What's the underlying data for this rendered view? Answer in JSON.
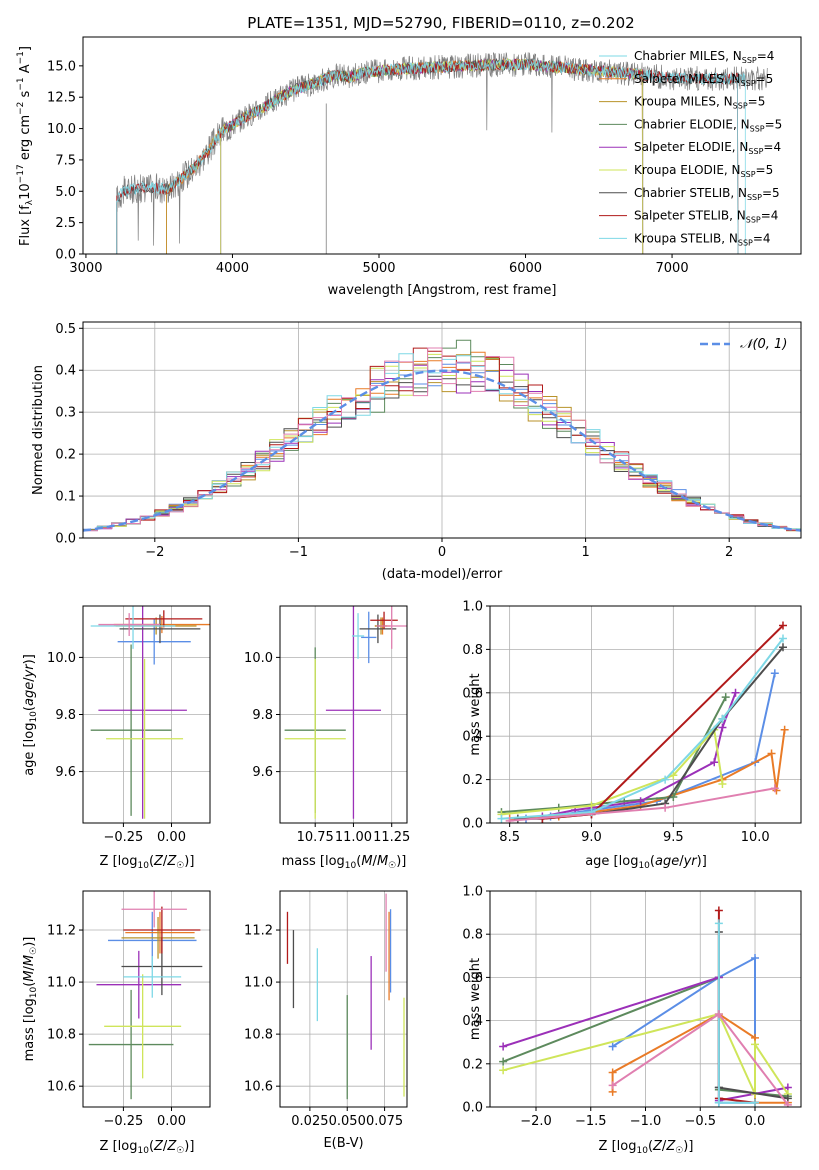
{
  "figure": {
    "title": "PLATE=1351, MJD=52790, FIBERID=0110, z=0.202",
    "colors": [
      "#5b8ee6",
      "#e97b27",
      "#b8922a",
      "#5d8a5d",
      "#9b30b8",
      "#cfe55a",
      "#4d4d4d",
      "#b11a1a",
      "#7ed8e6",
      "#e07fb0"
    ],
    "spectrum_color": "#808080"
  },
  "chart_data": [
    {
      "id": "spectrum",
      "type": "line",
      "xlabel": "wavelength [Angstrom, rest frame]",
      "ylabel": "Flux [f",
      "ylabel_full": "Flux [fλ10⁻¹⁷ erg cm⁻² s⁻¹ A⁻¹]",
      "xlim": [
        2980,
        7880
      ],
      "ylim": [
        0,
        17.3
      ],
      "xticks": [
        "3000",
        "4000",
        "5000",
        "6000",
        "7000"
      ],
      "xtick_values": [
        3000,
        4000,
        5000,
        6000,
        7000
      ],
      "yticks": [
        "0.0",
        "2.5",
        "5.0",
        "7.5",
        "10.0",
        "12.5",
        "15.0"
      ],
      "ytick_values": [
        0,
        2.5,
        5,
        7.5,
        10,
        12.5,
        15
      ],
      "grid": false,
      "legend_position": "top-right",
      "legend": [
        {
          "name": "Chabrier MILES, N",
          "sub": "SSP",
          "rest": "=4",
          "color": "#7ed8e6"
        },
        {
          "name": "Salpeter MILES, N",
          "sub": "SSP",
          "rest": "=5",
          "color": "#e97b27"
        },
        {
          "name": "Kroupa MILES, N",
          "sub": "SSP",
          "rest": "=5",
          "color": "#b8922a"
        },
        {
          "name": "Chabrier ELODIE, N",
          "sub": "SSP",
          "rest": "=5",
          "color": "#5d8a5d"
        },
        {
          "name": "Salpeter ELODIE, N",
          "sub": "SSP",
          "rest": "=4",
          "color": "#9b30b8"
        },
        {
          "name": "Kroupa ELODIE, N",
          "sub": "SSP",
          "rest": "=5",
          "color": "#cfe55a"
        },
        {
          "name": "Chabrier STELIB, N",
          "sub": "SSP",
          "rest": "=5",
          "color": "#4d4d4d"
        },
        {
          "name": "Salpeter STELIB, N",
          "sub": "SSP",
          "rest": "=4",
          "color": "#b11a1a"
        },
        {
          "name": "Kroupa STELIB, N",
          "sub": "SSP",
          "rest": "=4",
          "color": "#7ed8e6"
        }
      ],
      "model_anchor_x": [
        3200,
        3250,
        3400,
        3560,
        3650,
        3750,
        3850,
        3930,
        4000,
        4100,
        4200,
        4300,
        4400,
        4500,
        4600,
        4700,
        4800,
        4900,
        5000,
        5200,
        5400,
        5600,
        5800,
        6000,
        6200,
        6400,
        6600,
        6800,
        7000,
        7200,
        7400,
        7600
      ],
      "model_anchor_y": [
        4.2,
        5.0,
        5.3,
        5.2,
        6.0,
        7.0,
        8.5,
        9.8,
        10.3,
        11.0,
        11.6,
        12.3,
        13.0,
        13.4,
        13.8,
        14.3,
        14.1,
        14.5,
        14.6,
        14.8,
        14.9,
        15.0,
        15.1,
        15.1,
        14.9,
        14.7,
        14.5,
        14.3,
        14.0,
        14.0,
        14.0,
        14.0
      ],
      "data_range": [
        3210,
        7650
      ],
      "model_ranges": [
        [
          3210,
          7500
        ],
        [
          3550,
          6800
        ],
        [
          3550,
          6800
        ],
        [
          3920,
          6800
        ],
        [
          3920,
          6800
        ],
        [
          3920,
          6800
        ],
        [
          3210,
          7450
        ],
        [
          3210,
          7450
        ],
        [
          3210,
          7450
        ]
      ],
      "noise_amplitude": 1.1
    },
    {
      "id": "residuals",
      "type": "histogram",
      "xlabel": "(data-model)/error",
      "ylabel": "Normed distribution",
      "xlim": [
        -2.5,
        2.5
      ],
      "ylim": [
        0,
        0.515
      ],
      "xticks": [
        "−2",
        "−1",
        "0",
        "1",
        "2"
      ],
      "xtick_values": [
        -2,
        -1,
        0,
        1,
        2
      ],
      "yticks": [
        "0.0",
        "0.1",
        "0.2",
        "0.3",
        "0.4",
        "0.5"
      ],
      "ytick_values": [
        0,
        0.1,
        0.2,
        0.3,
        0.4,
        0.5
      ],
      "grid": true,
      "bin_width": 0.1,
      "n_histograms": 10,
      "legend_position": "top-right",
      "legend_label": "𝒩(0, 1)",
      "gaussian_color": "#5b8ee6"
    },
    {
      "id": "age-vs-z",
      "type": "scatter",
      "xlabel": "Z [log",
      "ylabel": "age  [log",
      "xlabel_full": "Z [log₁₀(Z/Z☉)]",
      "ylabel_full": "age  [log₁₀(age/yr)]",
      "xlim": [
        -0.46,
        0.2
      ],
      "ylim": [
        9.42,
        10.18
      ],
      "xticks": [
        "−0.25",
        "0.00"
      ],
      "xtick_values": [
        -0.25,
        0.0
      ],
      "yticks": [
        "9.6",
        "9.8",
        "10.0"
      ],
      "ytick_values": [
        9.6,
        9.8,
        10.0
      ],
      "grid": true,
      "points": [
        {
          "x": -0.09,
          "y": 10.055,
          "xerr": 0.19,
          "yerr": 0.08,
          "color": "#5b8ee6"
        },
        {
          "x": -0.05,
          "y": 10.115,
          "xerr": 0.25,
          "yerr": 0.03,
          "color": "#e97b27"
        },
        {
          "x": -0.08,
          "y": 10.11,
          "xerr": 0.21,
          "yerr": 0.03,
          "color": "#b8922a"
        },
        {
          "x": -0.21,
          "y": 9.745,
          "xerr": 0.21,
          "yerr": 0.3,
          "color": "#5d8a5d"
        },
        {
          "x": -0.15,
          "y": 9.815,
          "xerr": 0.23,
          "yerr": 0.38,
          "color": "#9b30b8"
        },
        {
          "x": -0.14,
          "y": 9.715,
          "xerr": 0.2,
          "yerr": 0.28,
          "color": "#cfe55a"
        },
        {
          "x": -0.06,
          "y": 10.1,
          "xerr": 0.21,
          "yerr": 0.05,
          "color": "#4d4d4d"
        },
        {
          "x": -0.04,
          "y": 10.135,
          "xerr": 0.2,
          "yerr": 0.03,
          "color": "#b11a1a"
        },
        {
          "x": -0.2,
          "y": 10.11,
          "xerr": 0.22,
          "yerr": 0.08,
          "color": "#7ed8e6"
        },
        {
          "x": -0.22,
          "y": 10.115,
          "xerr": 0.16,
          "yerr": 0.04,
          "color": "#e07fb0"
        }
      ]
    },
    {
      "id": "age-vs-mass",
      "type": "scatter",
      "xlabel": "mass [log",
      "xlabel_full": "mass [log₁₀(M/M☉)]",
      "xlim": [
        10.52,
        11.35
      ],
      "ylim": [
        9.42,
        10.18
      ],
      "xticks": [
        "10.75",
        "11.00",
        "11.25"
      ],
      "xtick_values": [
        10.75,
        11.0,
        11.25
      ],
      "yticks": [
        "9.6",
        "9.8",
        "10.0"
      ],
      "ytick_values": [
        9.6,
        9.8,
        10.0
      ],
      "grid": true,
      "points": [
        {
          "x": 11.1,
          "y": 10.07,
          "xerr": 0.05,
          "yerr": 0.09,
          "color": "#5b8ee6"
        },
        {
          "x": 11.19,
          "y": 10.11,
          "xerr": 0.05,
          "yerr": 0.03,
          "color": "#e97b27"
        },
        {
          "x": 11.18,
          "y": 10.11,
          "xerr": 0.04,
          "yerr": 0.03,
          "color": "#b8922a"
        },
        {
          "x": 10.75,
          "y": 9.745,
          "xerr": 0.2,
          "yerr": 0.29,
          "color": "#5d8a5d"
        },
        {
          "x": 11.0,
          "y": 9.815,
          "xerr": 0.18,
          "yerr": 0.38,
          "color": "#9b30b8"
        },
        {
          "x": 10.75,
          "y": 9.715,
          "xerr": 0.2,
          "yerr": 0.28,
          "color": "#cfe55a"
        },
        {
          "x": 11.16,
          "y": 10.1,
          "xerr": 0.12,
          "yerr": 0.05,
          "color": "#4d4d4d"
        },
        {
          "x": 11.2,
          "y": 10.13,
          "xerr": 0.09,
          "yerr": 0.03,
          "color": "#b11a1a"
        },
        {
          "x": 11.03,
          "y": 10.075,
          "xerr": 0.04,
          "yerr": 0.08,
          "color": "#7ed8e6"
        },
        {
          "x": 11.25,
          "y": 10.11,
          "xerr": 0.1,
          "yerr": 0.08,
          "color": "#e07fb0"
        }
      ]
    },
    {
      "id": "mass-weight-vs-age",
      "type": "line",
      "xlabel": "age  [log",
      "xlabel_full": "age  [log₁₀(age/yr)]",
      "ylabel": "mass weight",
      "xlim": [
        8.38,
        10.28
      ],
      "ylim": [
        0,
        1.0
      ],
      "xticks": [
        "8.5",
        "9.0",
        "9.5",
        "10.0"
      ],
      "xtick_values": [
        8.5,
        9.0,
        9.5,
        10.0
      ],
      "yticks": [
        "0.0",
        "0.2",
        "0.4",
        "0.6",
        "0.8",
        "1.0"
      ],
      "ytick_values": [
        0,
        0.2,
        0.4,
        0.6,
        0.8,
        1.0
      ],
      "grid": true,
      "series": [
        {
          "color": "#5b8ee6",
          "x": [
            8.6,
            8.75,
            9.0,
            9.4,
            10.0,
            10.12
          ],
          "y": [
            0.02,
            0.03,
            0.06,
            0.1,
            0.28,
            0.69
          ]
        },
        {
          "color": "#e97b27",
          "x": [
            8.5,
            8.8,
            9.3,
            9.8,
            10.1,
            10.13,
            10.18
          ],
          "y": [
            0.02,
            0.03,
            0.08,
            0.2,
            0.32,
            0.15,
            0.43
          ]
        },
        {
          "color": "#5d8a5d",
          "x": [
            8.45,
            8.8,
            9.2,
            9.5,
            9.82
          ],
          "y": [
            0.05,
            0.07,
            0.1,
            0.12,
            0.58
          ]
        },
        {
          "color": "#9b30b8",
          "x": [
            8.7,
            8.9,
            9.3,
            9.75,
            9.8,
            9.88
          ],
          "y": [
            0.03,
            0.06,
            0.1,
            0.28,
            0.44,
            0.6
          ]
        },
        {
          "color": "#cfe55a",
          "x": [
            8.45,
            9.0,
            9.5,
            9.75,
            9.8
          ],
          "y": [
            0.04,
            0.08,
            0.22,
            0.43,
            0.18
          ]
        },
        {
          "color": "#4d4d4d",
          "x": [
            8.55,
            8.7,
            9.0,
            9.45,
            9.8,
            10.17
          ],
          "y": [
            0.02,
            0.02,
            0.04,
            0.09,
            0.48,
            0.81
          ]
        },
        {
          "color": "#b11a1a",
          "x": [
            8.7,
            9.0,
            10.17
          ],
          "y": [
            0.02,
            0.04,
            0.91
          ]
        },
        {
          "color": "#7ed8e6",
          "x": [
            8.45,
            9.0,
            9.45,
            9.8,
            10.17
          ],
          "y": [
            0.02,
            0.05,
            0.2,
            0.48,
            0.85
          ]
        },
        {
          "color": "#e07fb0",
          "x": [
            8.5,
            9.45,
            10.12
          ],
          "y": [
            0.01,
            0.07,
            0.16
          ]
        }
      ]
    },
    {
      "id": "mass-vs-z",
      "type": "scatter",
      "xlabel": "Z [log",
      "ylabel": "mass [log",
      "xlabel_full": "Z [log₁₀(Z/Z☉)]",
      "ylabel_full": "mass [log₁₀(M/M☉)]",
      "xlim": [
        -0.46,
        0.2
      ],
      "ylim": [
        10.52,
        11.35
      ],
      "xticks": [
        "−0.25",
        "0.00"
      ],
      "xtick_values": [
        -0.25,
        0.0
      ],
      "yticks": [
        "10.6",
        "10.8",
        "11.0",
        "11.2"
      ],
      "ytick_values": [
        10.6,
        10.8,
        11.0,
        11.2
      ],
      "grid": true,
      "points": [
        {
          "x": -0.1,
          "y": 11.16,
          "xerr": 0.23,
          "yerr": 0.11,
          "color": "#5b8ee6"
        },
        {
          "x": -0.06,
          "y": 11.19,
          "xerr": 0.18,
          "yerr": 0.08,
          "color": "#e97b27"
        },
        {
          "x": -0.07,
          "y": 11.17,
          "xerr": 0.19,
          "yerr": 0.08,
          "color": "#b8922a"
        },
        {
          "x": -0.21,
          "y": 10.76,
          "xerr": 0.22,
          "yerr": 0.21,
          "color": "#5d8a5d"
        },
        {
          "x": -0.17,
          "y": 10.99,
          "xerr": 0.22,
          "yerr": 0.13,
          "color": "#9b30b8"
        },
        {
          "x": -0.15,
          "y": 10.83,
          "xerr": 0.2,
          "yerr": 0.2,
          "color": "#cfe55a"
        },
        {
          "x": -0.05,
          "y": 11.06,
          "xerr": 0.21,
          "yerr": 0.11,
          "color": "#4d4d4d"
        },
        {
          "x": -0.05,
          "y": 11.2,
          "xerr": 0.2,
          "yerr": 0.09,
          "color": "#b11a1a"
        },
        {
          "x": -0.1,
          "y": 11.02,
          "xerr": 0.15,
          "yerr": 0.08,
          "color": "#7ed8e6"
        },
        {
          "x": -0.09,
          "y": 11.28,
          "xerr": 0.17,
          "yerr": 0.07,
          "color": "#e07fb0"
        }
      ]
    },
    {
      "id": "mass-vs-ebv",
      "type": "scatter",
      "xlabel": "E(B-V)",
      "xlim": [
        0.005,
        0.09
      ],
      "ylim": [
        10.52,
        11.35
      ],
      "xticks": [
        "0.025",
        "0.050",
        "0.075"
      ],
      "xtick_values": [
        0.025,
        0.05,
        0.075
      ],
      "yticks": [
        "10.6",
        "10.8",
        "11.0",
        "11.2"
      ],
      "ytick_values": [
        10.6,
        10.8,
        11.0,
        11.2
      ],
      "grid": true,
      "points": [
        {
          "x": 0.01,
          "y": 11.17,
          "yerr": 0.1,
          "color": "#b11a1a"
        },
        {
          "x": 0.014,
          "y": 11.05,
          "yerr": 0.15,
          "color": "#4d4d4d"
        },
        {
          "x": 0.03,
          "y": 10.99,
          "yerr": 0.14,
          "color": "#7ed8e6"
        },
        {
          "x": 0.05,
          "y": 10.75,
          "yerr": 0.2,
          "color": "#5d8a5d"
        },
        {
          "x": 0.066,
          "y": 10.92,
          "yerr": 0.18,
          "color": "#9b30b8"
        },
        {
          "x": 0.076,
          "y": 11.19,
          "yerr": 0.15,
          "color": "#e07fb0"
        },
        {
          "x": 0.078,
          "y": 11.1,
          "yerr": 0.17,
          "color": "#e97b27"
        },
        {
          "x": 0.079,
          "y": 11.12,
          "yerr": 0.16,
          "color": "#5b8ee6"
        },
        {
          "x": 0.088,
          "y": 10.75,
          "yerr": 0.19,
          "color": "#cfe55a"
        }
      ]
    },
    {
      "id": "mass-weight-vs-z",
      "type": "line",
      "xlabel": "Z [log",
      "xlabel_full": "Z [log₁₀(Z/Z☉)]",
      "ylabel": "mass weight",
      "xlim": [
        -2.42,
        0.42
      ],
      "ylim": [
        0,
        1.0
      ],
      "xticks": [
        "−2.0",
        "−1.5",
        "−1.0",
        "−0.5",
        "0.0"
      ],
      "xtick_values": [
        -2.0,
        -1.5,
        -1.0,
        -0.5,
        0.0
      ],
      "yticks": [
        "0.0",
        "0.2",
        "0.4",
        "0.6",
        "0.8",
        "1.0"
      ],
      "ytick_values": [
        0,
        0.2,
        0.4,
        0.6,
        0.8,
        1.0
      ],
      "grid": true,
      "series": [
        {
          "color": "#5b8ee6",
          "x": [
            -1.3,
            -0.33,
            0.0,
            0.0,
            -0.33
          ],
          "y": [
            0.28,
            0.6,
            0.69,
            0.02,
            0.02
          ]
        },
        {
          "color": "#e97b27",
          "x": [
            -1.3,
            -1.3,
            -0.33,
            0.0,
            0.0,
            0.3
          ],
          "y": [
            0.07,
            0.16,
            0.43,
            0.32,
            0.02,
            0.02
          ]
        },
        {
          "color": "#5d8a5d",
          "x": [
            -2.3,
            -0.33,
            -0.33,
            0.3
          ],
          "y": [
            0.21,
            0.6,
            0.08,
            0.05
          ]
        },
        {
          "color": "#9b30b8",
          "x": [
            -2.3,
            -0.33,
            -0.33,
            0.3
          ],
          "y": [
            0.28,
            0.6,
            0.03,
            0.09
          ]
        },
        {
          "color": "#cfe55a",
          "x": [
            -2.3,
            -0.33,
            0.0,
            0.0,
            0.3
          ],
          "y": [
            0.17,
            0.43,
            0.06,
            0.29,
            0.06
          ]
        },
        {
          "color": "#4d4d4d",
          "x": [
            -0.33,
            -0.33,
            -0.33,
            0.3
          ],
          "y": [
            0.81,
            0.09,
            0.09,
            0.04
          ]
        },
        {
          "color": "#b11a1a",
          "x": [
            -0.33,
            -0.33,
            0.0
          ],
          "y": [
            0.91,
            0.04,
            0.02
          ]
        },
        {
          "color": "#7ed8e6",
          "x": [
            -0.33,
            -0.33,
            0.0
          ],
          "y": [
            0.85,
            0.02,
            0.02
          ]
        },
        {
          "color": "#e07fb0",
          "x": [
            -1.3,
            -0.33,
            0.3
          ],
          "y": [
            0.1,
            0.43,
            0.01
          ]
        }
      ]
    }
  ]
}
